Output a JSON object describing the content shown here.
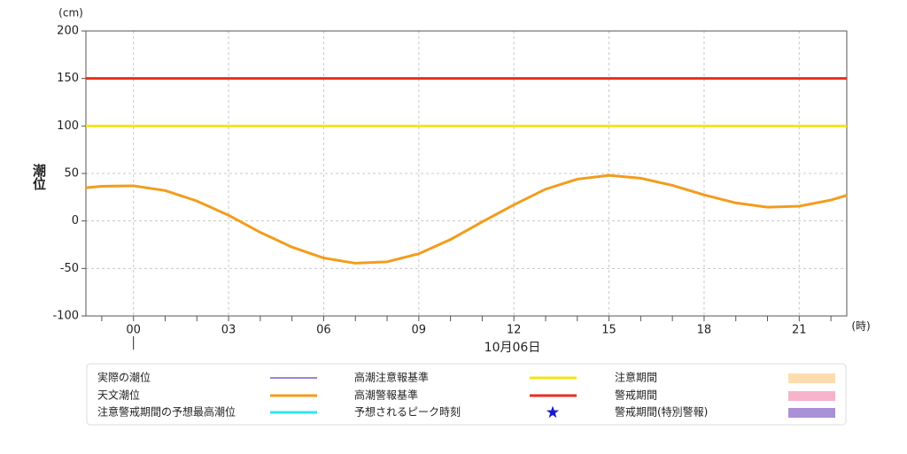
{
  "chart_data": {
    "type": "line",
    "y_unit": "(cm)",
    "y_label": "潮位",
    "x_unit": "(時)",
    "date_label": "10月06日",
    "date_start": 0,
    "xlim": [
      -1.5,
      22.5
    ],
    "xticks": [
      {
        "value": 0,
        "label": "00"
      },
      {
        "value": 3,
        "label": "03"
      },
      {
        "value": 6,
        "label": "06"
      },
      {
        "value": 9,
        "label": "09"
      },
      {
        "value": 12,
        "label": "12"
      },
      {
        "value": 15,
        "label": "15"
      },
      {
        "value": 18,
        "label": "18"
      },
      {
        "value": 21,
        "label": "21"
      }
    ],
    "x_minor_ticks": [
      -1,
      0,
      1,
      2,
      3,
      4,
      5,
      6,
      7,
      8,
      9,
      10,
      11,
      12,
      13,
      14,
      15,
      16,
      17,
      18,
      19,
      20,
      21,
      22
    ],
    "ylim": [
      -100,
      200
    ],
    "yticks": [
      -100,
      -50,
      0,
      50,
      100,
      150,
      200
    ],
    "grid": true,
    "x": [
      -1.5,
      -1,
      0,
      1,
      2,
      3,
      4,
      5,
      6,
      7,
      8,
      9,
      10,
      11,
      12,
      13,
      14,
      15,
      16,
      17,
      18,
      19,
      20,
      21,
      22,
      22.5
    ],
    "series": [
      {
        "name": "天文潮位",
        "color": "#f39c1c",
        "values": [
          35,
          36.5,
          37,
          32,
          21,
          6,
          -12,
          -27.5,
          -39,
          -44.5,
          -43,
          -34.5,
          -19.5,
          -1,
          17,
          33.5,
          44,
          48,
          45,
          37.5,
          27.5,
          19,
          14.5,
          15.5,
          22,
          27
        ]
      }
    ],
    "thresholds": [
      {
        "name": "高潮注意報基準",
        "color": "#f2e418",
        "value": 100
      },
      {
        "name": "高潮警報基準",
        "color": "#e8301c",
        "value": 150
      }
    ],
    "legend_extra": [
      {
        "name": "実際の潮位",
        "color": "#7d5cc6",
        "kind": "line"
      },
      {
        "name": "注意警戒期間の予想最高潮位",
        "color": "#2ee6ee",
        "kind": "line"
      },
      {
        "name": "予想されるピーク時刻",
        "color": "#1a1acc",
        "kind": "star"
      },
      {
        "name": "注意期間",
        "color": "#fddcb0",
        "kind": "box"
      },
      {
        "name": "警戒期間",
        "color": "#f7b3cc",
        "kind": "box"
      },
      {
        "name": "警戒期間(特別警報)",
        "color": "#a98fd8",
        "kind": "box"
      }
    ]
  }
}
